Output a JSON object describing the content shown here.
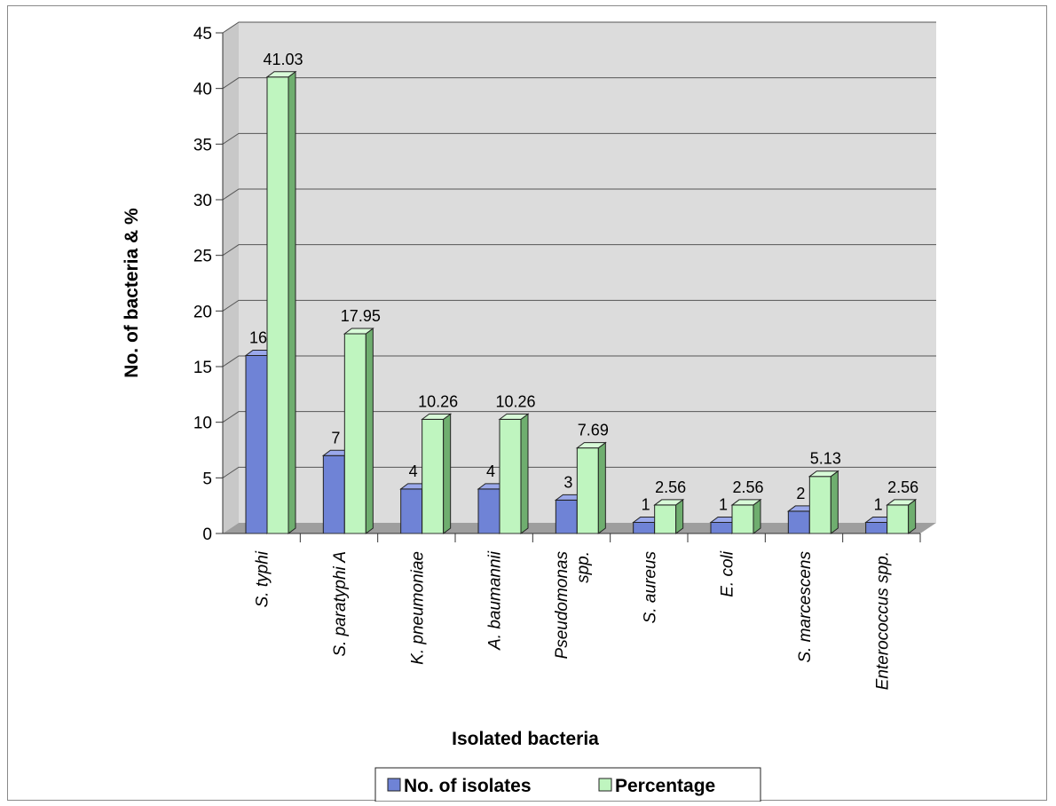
{
  "chart_data": {
    "type": "bar",
    "title": "",
    "xlabel": "Isolated bacteria",
    "ylabel": "No. of bacteria & %",
    "ylim": [
      0,
      45
    ],
    "yticks": [
      0,
      5,
      10,
      15,
      20,
      25,
      30,
      35,
      40,
      45
    ],
    "categories": [
      [
        "S. typhi"
      ],
      [
        "S. paratyphi A"
      ],
      [
        "K. pneumoniae"
      ],
      [
        "A. baumannii"
      ],
      [
        "Pseudomonas",
        "spp."
      ],
      [
        "S. aureus"
      ],
      [
        "E. coli"
      ],
      [
        "S. marcescens"
      ],
      [
        "Enterococcus spp."
      ]
    ],
    "series": [
      {
        "name": "No. of isolates",
        "values": [
          16,
          7,
          4,
          4,
          3,
          1,
          1,
          2,
          1
        ],
        "labels": [
          "16",
          "7",
          "4",
          "4",
          "3",
          "1",
          "1",
          "2",
          "1"
        ],
        "color": "#6f83d6",
        "side_color": "#3f4f9e",
        "top_color": "#9aa8ea"
      },
      {
        "name": "Percentage",
        "values": [
          41.03,
          17.95,
          10.26,
          10.26,
          7.69,
          2.56,
          2.56,
          5.13,
          2.56
        ],
        "labels": [
          "41.03",
          "17.95",
          "10.26",
          "10.26",
          "7.69",
          "2.56",
          "2.56",
          "5.13",
          "2.56"
        ],
        "color": "#bff5bf",
        "side_color": "#6fae6f",
        "top_color": "#d8fbd8"
      }
    ],
    "grid": true,
    "legend": "bottom",
    "wall_color": "#dcdcdc",
    "floor_color": "#9e9e9e"
  }
}
